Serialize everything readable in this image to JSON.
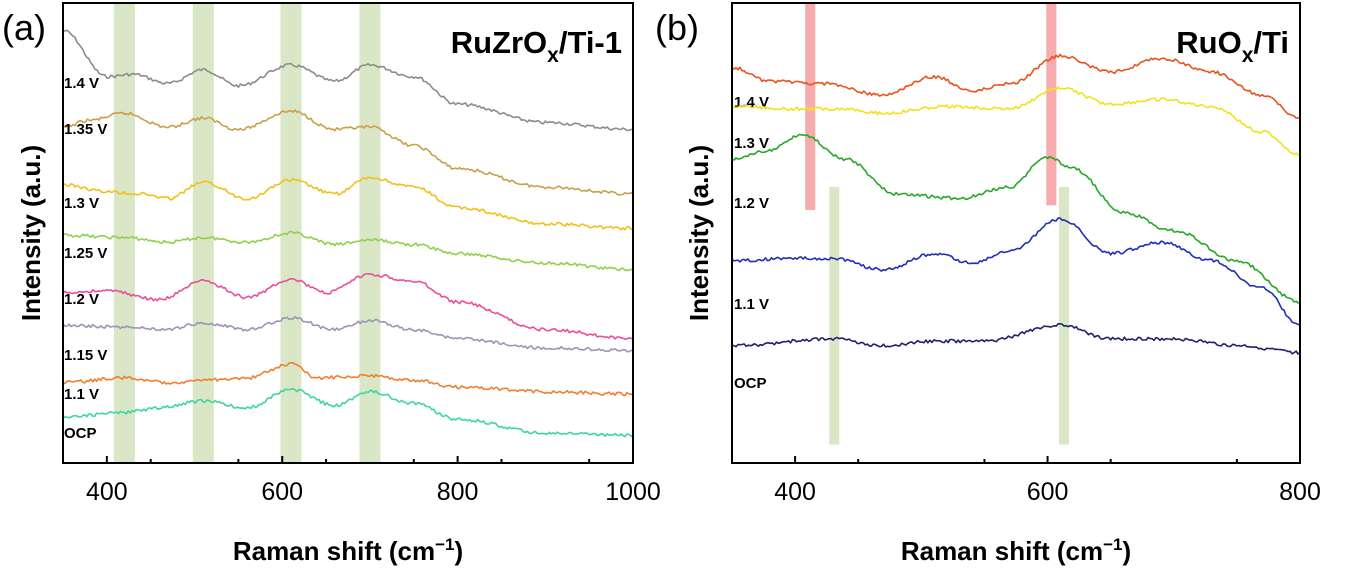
{
  "chart_data": [
    {
      "type": "line",
      "panel_label": "(a)",
      "title": "RuZrO",
      "title_sub": "x",
      "title_suffix": "/Ti-1",
      "xlabel": "Raman shift (cm",
      "xlabel_sup": "−1",
      "xlabel_close": ")",
      "ylabel": "Intensity (a.u.)",
      "xlim": [
        350,
        1000
      ],
      "ylim": [
        0,
        1
      ],
      "x_ticks": [
        "400",
        "600",
        "800",
        "1000"
      ],
      "x_tick_values": [
        400,
        600,
        800,
        1000
      ],
      "y_ticks": "none",
      "highlight_bands": [
        {
          "from": 408,
          "to": 432,
          "color": "#d6e4c0"
        },
        {
          "from": 498,
          "to": 522,
          "color": "#d6e4c0"
        },
        {
          "from": 598,
          "to": 622,
          "color": "#d6e4c0"
        },
        {
          "from": 688,
          "to": 712,
          "color": "#d6e4c0"
        }
      ],
      "series": [
        {
          "name": "1.4 V",
          "color": "#8c8c8c",
          "x": [
            350,
            400,
            430,
            470,
            510,
            550,
            610,
            660,
            700,
            750,
            800,
            900,
            1000
          ],
          "y": [
            0.94,
            0.84,
            0.845,
            0.825,
            0.855,
            0.82,
            0.865,
            0.83,
            0.865,
            0.84,
            0.78,
            0.74,
            0.725
          ]
        },
        {
          "name": "1.35 V",
          "color": "#c9a04a",
          "x": [
            350,
            380,
            420,
            470,
            510,
            550,
            610,
            660,
            700,
            750,
            800,
            900,
            1000
          ],
          "y": [
            0.73,
            0.745,
            0.76,
            0.73,
            0.75,
            0.725,
            0.765,
            0.725,
            0.73,
            0.69,
            0.64,
            0.6,
            0.585
          ]
        },
        {
          "name": "1.3 V",
          "color": "#f2c01c",
          "x": [
            350,
            400,
            440,
            470,
            510,
            560,
            610,
            660,
            700,
            750,
            800,
            900,
            1000
          ],
          "y": [
            0.605,
            0.59,
            0.585,
            0.575,
            0.61,
            0.575,
            0.615,
            0.585,
            0.62,
            0.6,
            0.555,
            0.52,
            0.51
          ]
        },
        {
          "name": "1.25 V",
          "color": "#8fd24a",
          "x": [
            350,
            420,
            470,
            510,
            560,
            610,
            660,
            700,
            750,
            800,
            900,
            1000
          ],
          "y": [
            0.495,
            0.49,
            0.48,
            0.49,
            0.48,
            0.5,
            0.475,
            0.485,
            0.475,
            0.455,
            0.435,
            0.42
          ]
        },
        {
          "name": "1.2 V",
          "color": "#e8509a",
          "x": [
            350,
            400,
            460,
            510,
            560,
            610,
            650,
            700,
            750,
            800,
            900,
            1000
          ],
          "y": [
            0.37,
            0.375,
            0.355,
            0.395,
            0.36,
            0.4,
            0.37,
            0.41,
            0.395,
            0.35,
            0.29,
            0.27
          ]
        },
        {
          "name": "1.15 V",
          "color": "#9d93b8",
          "x": [
            350,
            420,
            470,
            510,
            560,
            610,
            660,
            700,
            750,
            800,
            900,
            1000
          ],
          "y": [
            0.3,
            0.295,
            0.29,
            0.305,
            0.29,
            0.315,
            0.29,
            0.31,
            0.29,
            0.27,
            0.25,
            0.245
          ]
        },
        {
          "name": "1.1 V",
          "color": "#ee8032",
          "x": [
            350,
            420,
            470,
            510,
            560,
            610,
            640,
            700,
            750,
            800,
            900,
            1000
          ],
          "y": [
            0.175,
            0.185,
            0.175,
            0.18,
            0.185,
            0.215,
            0.185,
            0.19,
            0.18,
            0.165,
            0.155,
            0.15
          ]
        },
        {
          "name": "OCP",
          "color": "#3ed6a0",
          "x": [
            350,
            420,
            460,
            510,
            560,
            610,
            660,
            700,
            750,
            800,
            900,
            1000
          ],
          "y": [
            0.1,
            0.11,
            0.12,
            0.135,
            0.12,
            0.16,
            0.125,
            0.155,
            0.13,
            0.095,
            0.065,
            0.06
          ]
        }
      ]
    },
    {
      "type": "line",
      "panel_label": "(b)",
      "title": "RuO",
      "title_sub": "x",
      "title_suffix": "/Ti",
      "xlabel": "Raman shift (cm",
      "xlabel_sup": "−1",
      "xlabel_close": ")",
      "ylabel": "Intensity (a.u.)",
      "xlim": [
        350,
        800
      ],
      "ylim": [
        0,
        1
      ],
      "x_ticks": [
        "400",
        "600",
        "800"
      ],
      "x_tick_values": [
        400,
        600,
        800
      ],
      "y_ticks": "none",
      "highlight_bands": [
        {
          "from": 408,
          "to": 416,
          "ymin": 0.55,
          "ymax": 1.0,
          "color": "#f5a3a3"
        },
        {
          "from": 599,
          "to": 607,
          "ymin": 0.56,
          "ymax": 1.0,
          "color": "#f5a3a3"
        },
        {
          "from": 427,
          "to": 435,
          "ymin": 0.04,
          "ymax": 0.6,
          "color": "#d6e4c0"
        },
        {
          "from": 609,
          "to": 617,
          "ymin": 0.04,
          "ymax": 0.6,
          "color": "#d6e4c0"
        }
      ],
      "series": [
        {
          "name": "1.4 V",
          "color": "#e8541c",
          "x": [
            350,
            380,
            420,
            470,
            510,
            540,
            570,
            610,
            650,
            690,
            730,
            770,
            800
          ],
          "y": [
            0.86,
            0.83,
            0.825,
            0.8,
            0.84,
            0.81,
            0.825,
            0.885,
            0.85,
            0.88,
            0.85,
            0.8,
            0.75
          ]
        },
        {
          "name": "1.3 V",
          "color": "#f0e21c",
          "x": [
            350,
            400,
            440,
            470,
            520,
            570,
            610,
            650,
            690,
            730,
            770,
            800
          ],
          "y": [
            0.775,
            0.77,
            0.77,
            0.76,
            0.775,
            0.77,
            0.815,
            0.78,
            0.79,
            0.775,
            0.72,
            0.67
          ]
        },
        {
          "name": "1.2 V",
          "color": "#28a828",
          "x": [
            350,
            380,
            405,
            440,
            480,
            530,
            570,
            600,
            620,
            660,
            700,
            750,
            800
          ],
          "y": [
            0.66,
            0.68,
            0.715,
            0.66,
            0.585,
            0.575,
            0.6,
            0.665,
            0.64,
            0.545,
            0.505,
            0.44,
            0.35
          ]
        },
        {
          "name": "1.1 V",
          "color": "#2030b0",
          "x": [
            350,
            400,
            430,
            470,
            510,
            540,
            570,
            610,
            650,
            690,
            730,
            770,
            800
          ],
          "y": [
            0.44,
            0.445,
            0.445,
            0.42,
            0.455,
            0.435,
            0.46,
            0.53,
            0.455,
            0.48,
            0.44,
            0.38,
            0.3
          ]
        },
        {
          "name": "OCP",
          "color": "#202070",
          "x": [
            350,
            430,
            470,
            510,
            550,
            610,
            650,
            700,
            750,
            800
          ],
          "y": [
            0.255,
            0.27,
            0.255,
            0.265,
            0.265,
            0.3,
            0.27,
            0.27,
            0.255,
            0.24
          ]
        }
      ]
    }
  ]
}
